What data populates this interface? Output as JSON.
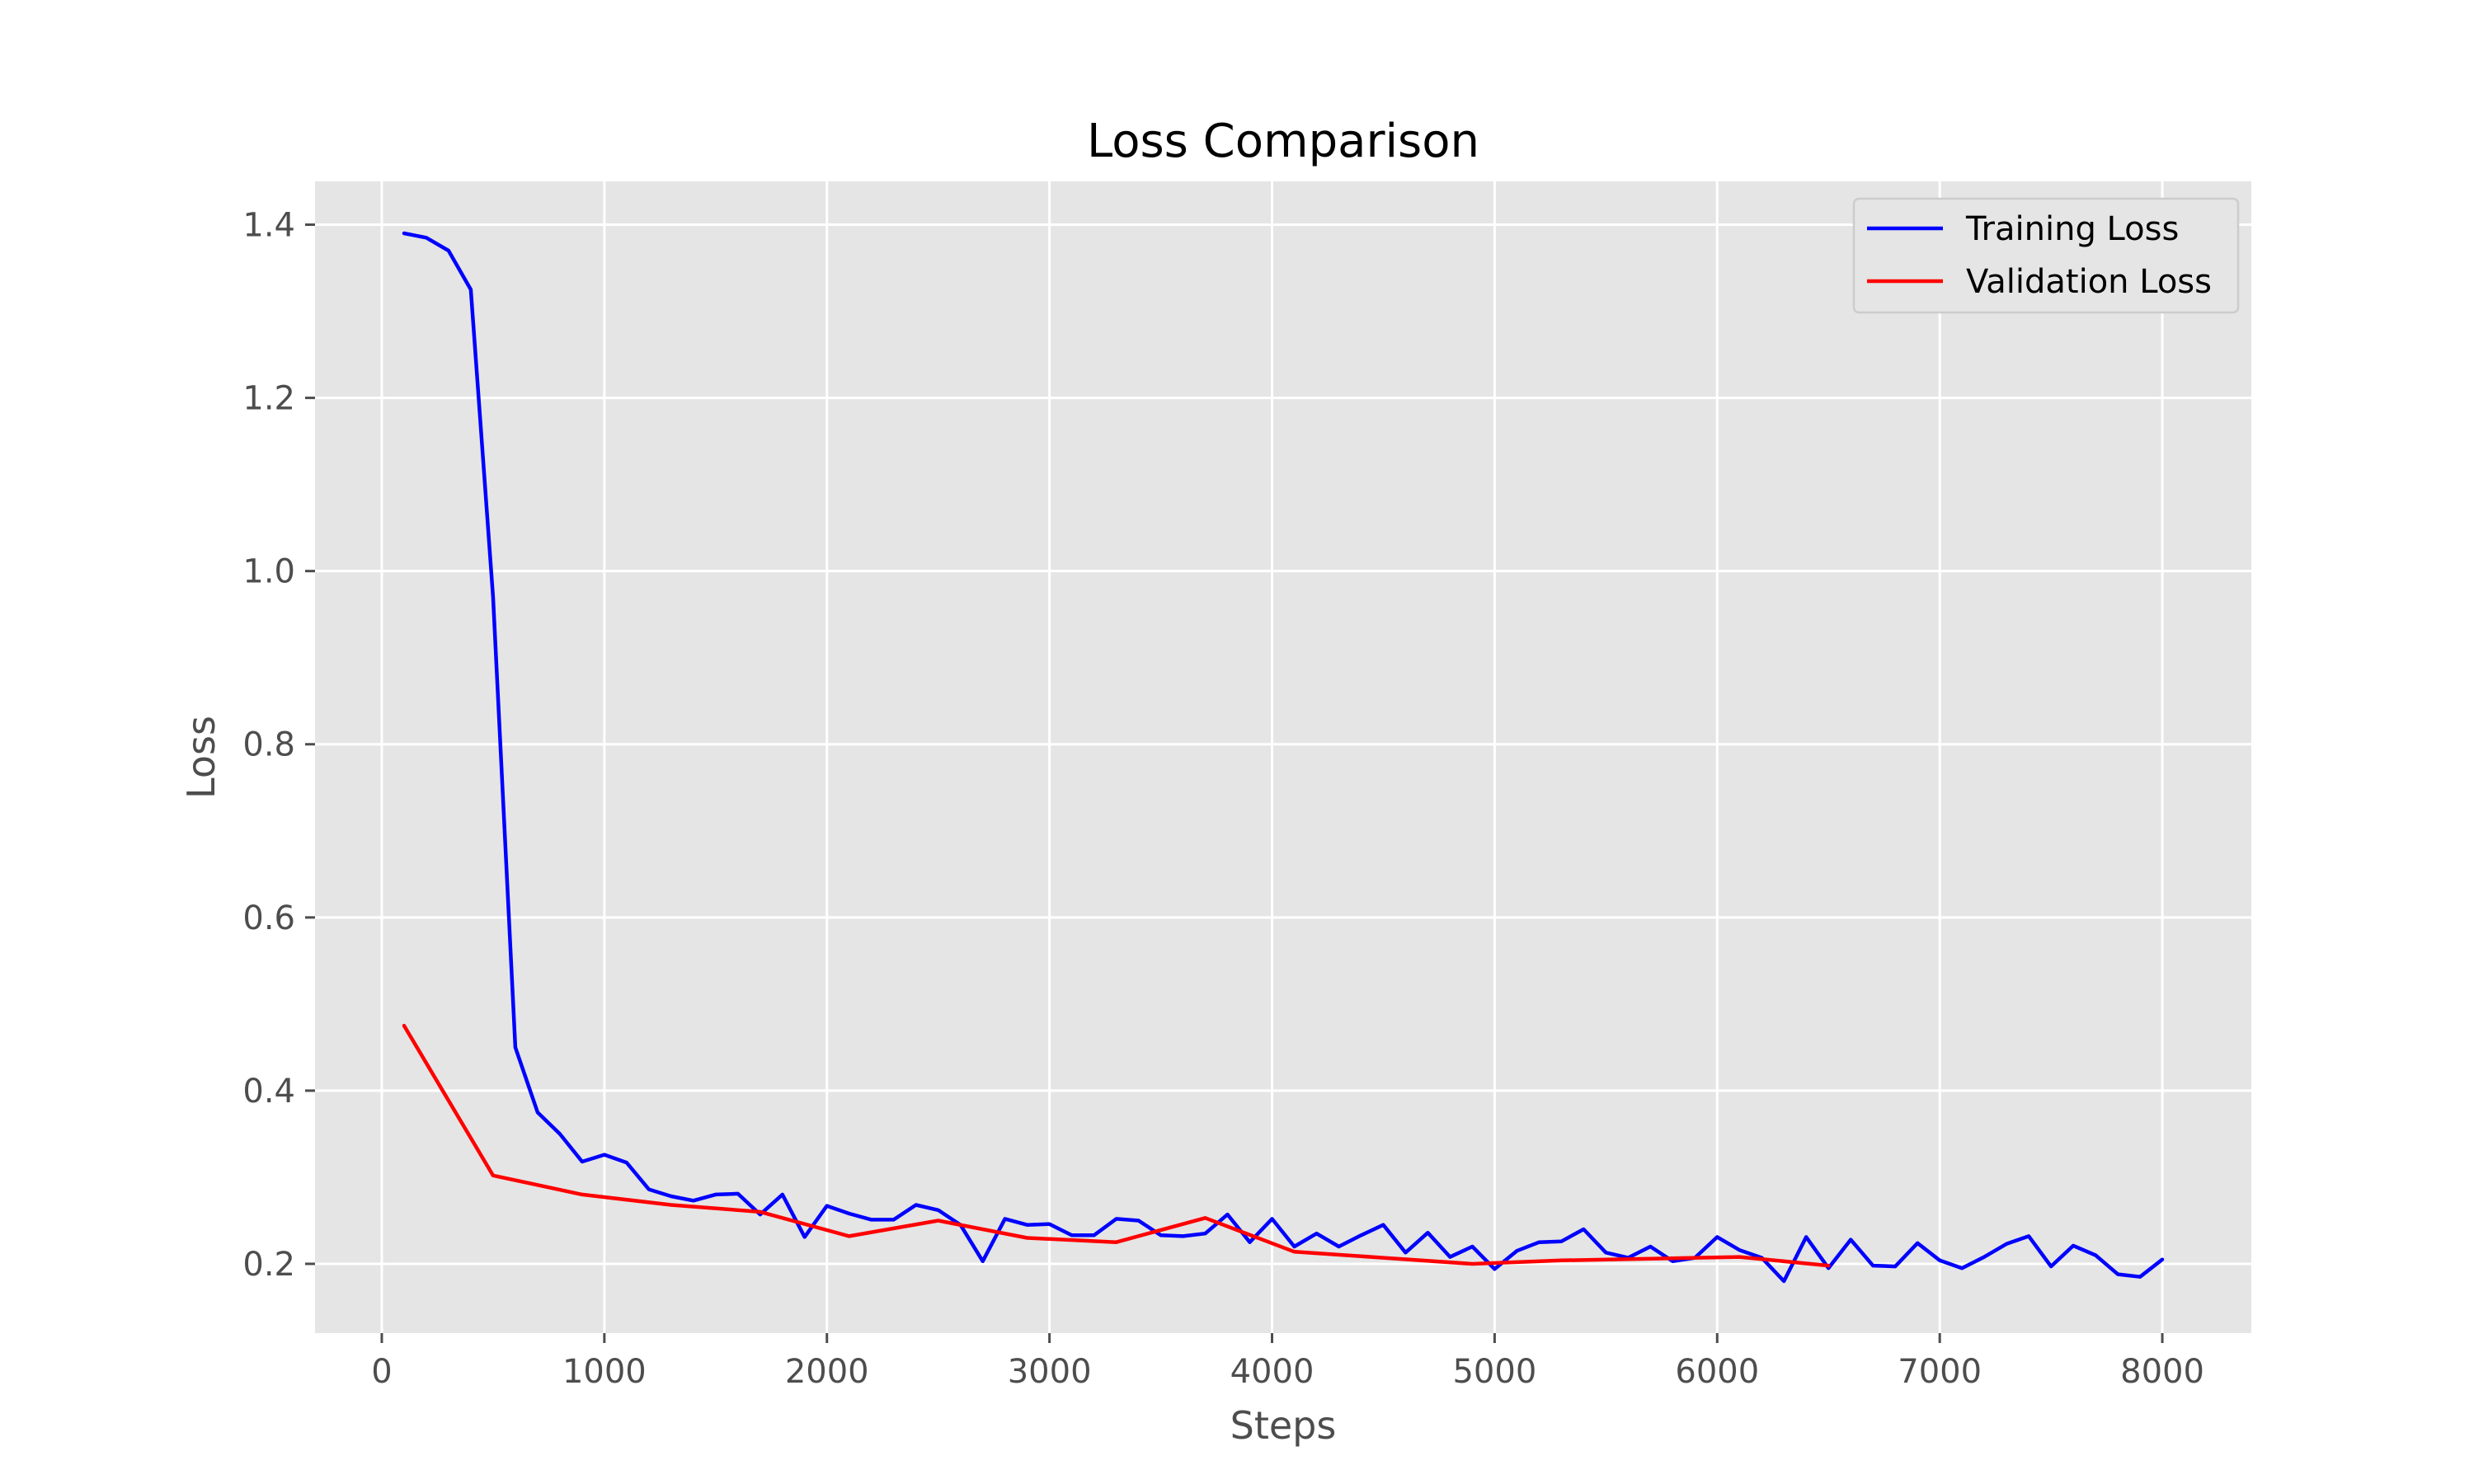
{
  "chart_data": {
    "type": "line",
    "title": "Loss Comparison",
    "xlabel": "Steps",
    "ylabel": "Loss",
    "xlim": [
      -300,
      8400
    ],
    "ylim": [
      0.12,
      1.45
    ],
    "xticks": [
      0,
      1000,
      2000,
      3000,
      4000,
      5000,
      6000,
      7000,
      8000
    ],
    "yticks": [
      0.2,
      0.4,
      0.6,
      0.8,
      1.0,
      1.2,
      1.4
    ],
    "xtick_labels": [
      "0",
      "1000",
      "2000",
      "3000",
      "4000",
      "5000",
      "6000",
      "7000",
      "8000"
    ],
    "ytick_labels": [
      "0.2",
      "0.4",
      "0.6",
      "0.8",
      "1.0",
      "1.2",
      "1.4"
    ],
    "grid": true,
    "legend_position": "top-right",
    "background": "#e5e5e5",
    "series": [
      {
        "name": "Training Loss",
        "color": "#0000ff",
        "x": [
          100,
          200,
          300,
          400,
          500,
          600,
          700,
          800,
          900,
          1000,
          1100,
          1200,
          1300,
          1400,
          1500,
          1600,
          1700,
          1800,
          1900,
          2000,
          2100,
          2200,
          2300,
          2400,
          2500,
          2600,
          2700,
          2800,
          2900,
          3000,
          3100,
          3200,
          3300,
          3400,
          3500,
          3600,
          3700,
          3800,
          3900,
          4000,
          4100,
          4200,
          4300,
          4400,
          4500,
          4600,
          4700,
          4800,
          4900,
          5000,
          5100,
          5200,
          5300,
          5400,
          5500,
          5600,
          5700,
          5800,
          5900,
          6000,
          6100,
          6200,
          6300,
          6400,
          6500,
          6600,
          6700,
          6800,
          6900,
          7000,
          7100,
          7200,
          7300,
          7400,
          7500,
          7600,
          7700,
          7800,
          7900,
          8000
        ],
        "y": [
          1.39,
          1.385,
          1.37,
          1.325,
          0.97,
          0.45,
          0.375,
          0.35,
          0.318,
          0.326,
          0.317,
          0.286,
          0.278,
          0.273,
          0.28,
          0.281,
          0.257,
          0.28,
          0.231,
          0.267,
          0.258,
          0.251,
          0.251,
          0.268,
          0.262,
          0.245,
          0.203,
          0.252,
          0.245,
          0.246,
          0.233,
          0.233,
          0.252,
          0.25,
          0.233,
          0.232,
          0.235,
          0.257,
          0.225,
          0.252,
          0.22,
          0.235,
          0.22,
          0.233,
          0.245,
          0.213,
          0.236,
          0.208,
          0.22,
          0.194,
          0.215,
          0.225,
          0.226,
          0.24,
          0.213,
          0.207,
          0.22,
          0.203,
          0.207,
          0.231,
          0.216,
          0.207,
          0.18,
          0.231,
          0.195,
          0.228,
          0.198,
          0.197,
          0.224,
          0.204,
          0.195,
          0.208,
          0.223,
          0.232,
          0.197,
          0.221,
          0.21,
          0.188,
          0.185,
          0.205
        ]
      },
      {
        "name": "Validation Loss",
        "color": "#ff0000",
        "x": [
          100,
          500,
          900,
          1300,
          1700,
          2100,
          2500,
          2900,
          3300,
          3700,
          4100,
          4500,
          4900,
          5300,
          5700,
          6100,
          6500
        ],
        "y": [
          0.475,
          0.302,
          0.28,
          0.268,
          0.26,
          0.232,
          0.25,
          0.23,
          0.225,
          0.253,
          0.214,
          0.207,
          0.2,
          0.204,
          0.206,
          0.208,
          0.198
        ]
      }
    ]
  }
}
